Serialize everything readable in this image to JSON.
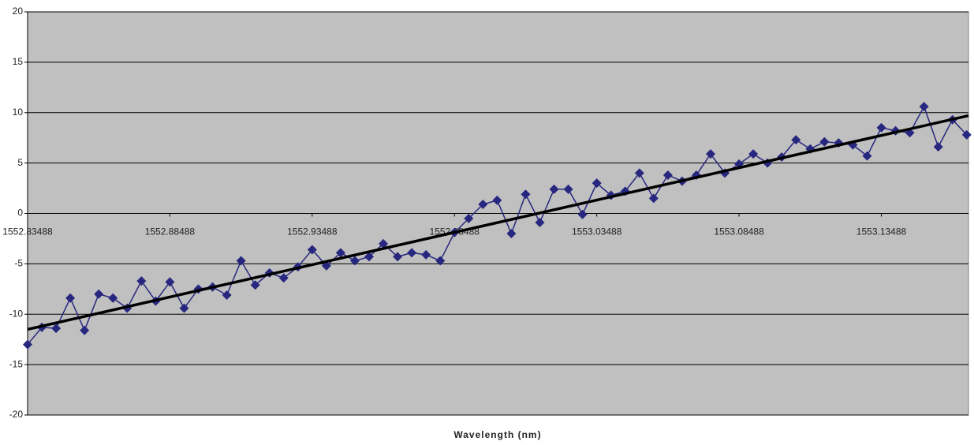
{
  "chart_data": {
    "type": "line",
    "x_label": "Wavelength (nm)",
    "x": [
      1552.83488,
      1552.83988,
      1552.84488,
      1552.84988,
      1552.85488,
      1552.85988,
      1552.86488,
      1552.86988,
      1552.87488,
      1552.87988,
      1552.88488,
      1552.88988,
      1552.89488,
      1552.89988,
      1552.90488,
      1552.90988,
      1552.91488,
      1552.91988,
      1552.92488,
      1552.92988,
      1552.93488,
      1552.93988,
      1552.94488,
      1552.94988,
      1552.95488,
      1552.95988,
      1552.96488,
      1552.96988,
      1552.97488,
      1552.97988,
      1552.98488,
      1552.98988,
      1552.99488,
      1552.99988,
      1553.00488,
      1553.00988,
      1553.01488,
      1553.01988,
      1553.02488,
      1553.02988,
      1553.03488,
      1553.03988,
      1553.04488,
      1553.04988,
      1553.05488,
      1553.05988,
      1553.06488,
      1553.06988,
      1553.07488,
      1553.07988,
      1553.08488,
      1553.08988,
      1553.09488,
      1553.09988,
      1553.10488,
      1553.10988,
      1553.11488,
      1553.11988,
      1553.12488,
      1553.12988,
      1553.13488,
      1553.13988,
      1553.14488,
      1553.14988,
      1553.15488,
      1553.15988,
      1553.16488
    ],
    "series": [
      {
        "color": "#27277f",
        "values": [
          -13.0,
          -11.3,
          -11.4,
          -8.4,
          -11.6,
          -8.0,
          -8.4,
          -9.4,
          -6.7,
          -8.7,
          -6.8,
          -9.4,
          -7.5,
          -7.3,
          -8.1,
          -4.7,
          -7.1,
          -5.9,
          -6.4,
          -5.3,
          -3.6,
          -5.2,
          -3.9,
          -4.7,
          -4.3,
          -3.0,
          -4.3,
          -3.9,
          -4.1,
          -4.7,
          -1.9,
          -0.5,
          0.9,
          1.3,
          -2.0,
          1.9,
          -0.9,
          2.4,
          2.4,
          -0.1,
          3.0,
          1.8,
          2.2,
          4.0,
          1.5,
          3.8,
          3.2,
          3.8,
          5.9,
          4.0,
          4.9,
          5.9,
          5.0,
          5.6,
          7.3,
          6.4,
          7.1,
          7.0,
          6.8,
          5.7,
          8.5,
          8.2,
          8.0,
          10.6,
          6.6,
          9.3,
          7.8
        ]
      }
    ],
    "trendline": {
      "color": "#000000",
      "x": [
        1552.83488,
        1553.1655
      ],
      "values": [
        -11.5,
        9.7
      ]
    },
    "xlim": [
      1552.83488,
      1553.1655
    ],
    "xticks": [
      1552.83488,
      1552.88488,
      1552.93488,
      1552.98488,
      1553.03488,
      1553.08488,
      1553.13488
    ],
    "ylim": [
      -20,
      20
    ],
    "yticks": [
      -20,
      -15,
      -10,
      -5,
      0,
      5,
      10,
      15,
      20
    ],
    "grid": true,
    "plot_background": "#c0c0c0"
  }
}
